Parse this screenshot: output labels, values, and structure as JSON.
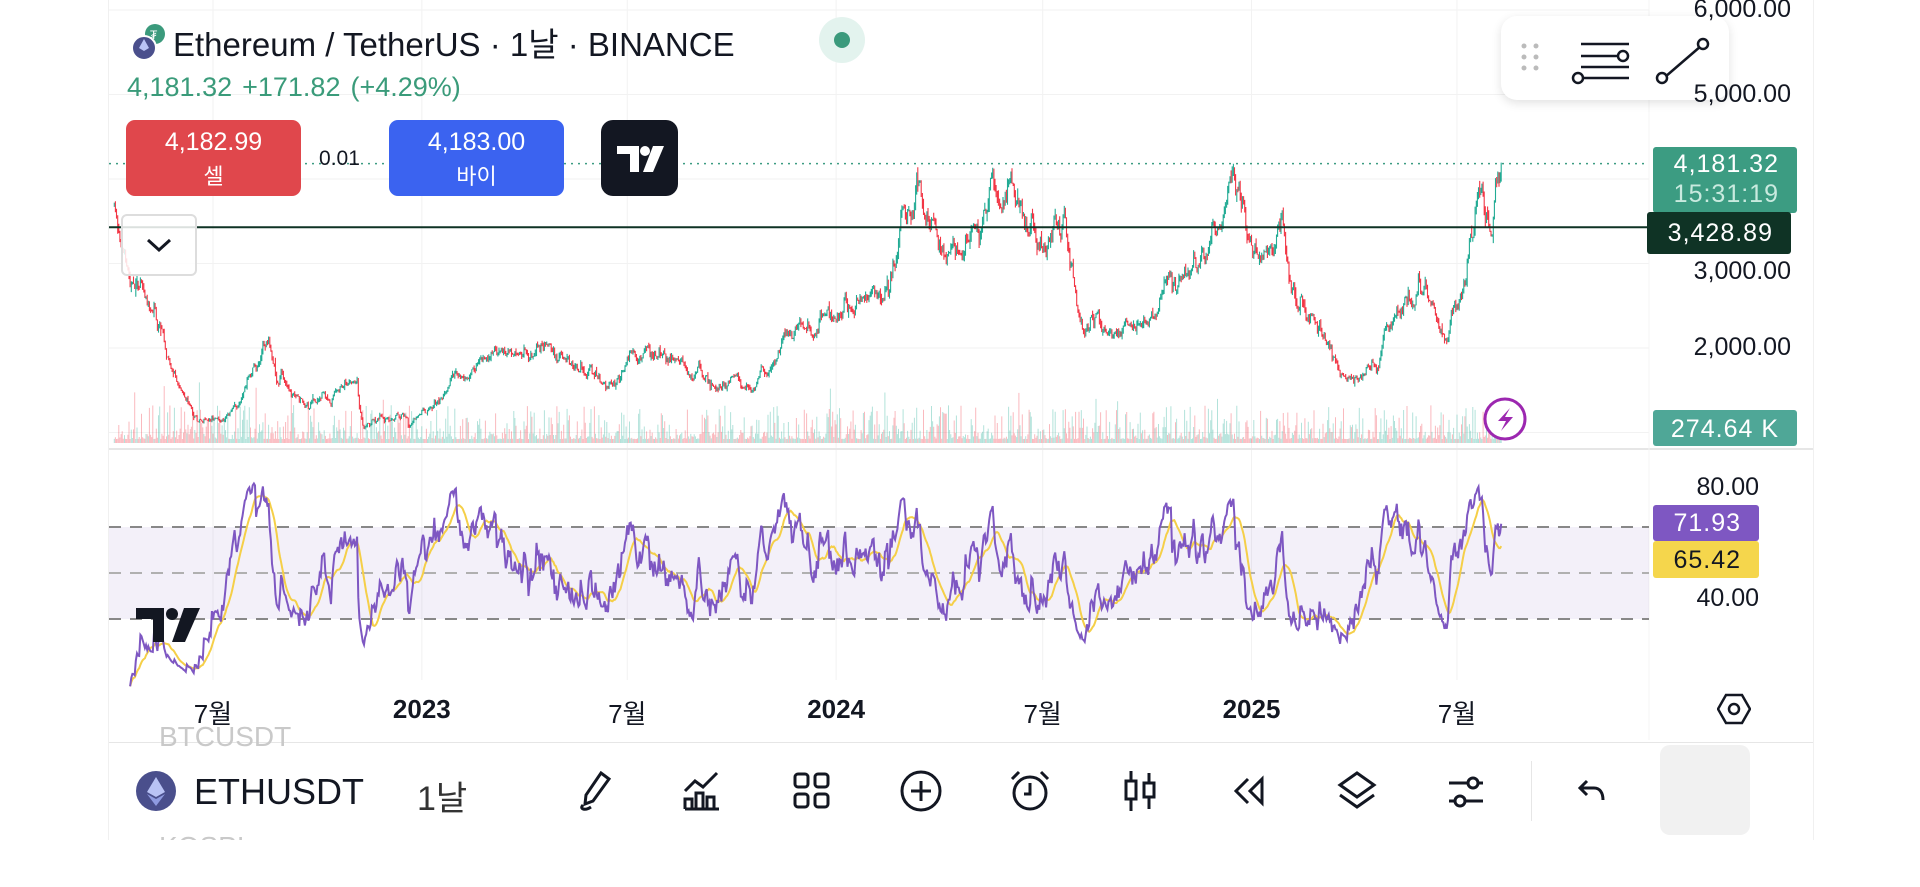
{
  "header": {
    "symbol_title": "Ethereum / TetherUS · 1날 · BINANCE",
    "last_price": "4,181.32",
    "change": "+171.82",
    "change_pct": "(+4.29%)",
    "market_status_color": "#3b9a7c"
  },
  "trade": {
    "sell_price": "4,182.99",
    "sell_label": "셀",
    "spread": "0.01",
    "buy_price": "4,183.00",
    "buy_label": "바이"
  },
  "price_axis": {
    "ticks": [
      "6,000.00",
      "5,000.00",
      "3,000.00",
      "2,000.00"
    ],
    "tick_values": [
      6000,
      5000,
      3000,
      2000
    ],
    "last_price_badge": "4,181.32",
    "countdown": "15:31:19",
    "line_badge": "3,428.89",
    "line_value": 3428.89,
    "volume_badge": "274.64 K"
  },
  "rsi_axis": {
    "ticks": [
      "80.00",
      "40.00"
    ],
    "rsi_value": "71.93",
    "rsi_ma_value": "65.42",
    "levels": [
      70,
      50,
      30
    ]
  },
  "time_axis": {
    "labels": [
      {
        "text": "7월",
        "date": "2022-07-01",
        "bold": false
      },
      {
        "text": "2023",
        "date": "2023-01-01",
        "bold": true
      },
      {
        "text": "7월",
        "date": "2023-07-01",
        "bold": false
      },
      {
        "text": "2024",
        "date": "2024-01-01",
        "bold": true
      },
      {
        "text": "7월",
        "date": "2024-07-01",
        "bold": false
      },
      {
        "text": "2025",
        "date": "2025-01-01",
        "bold": true
      },
      {
        "text": "7월",
        "date": "2025-07-01",
        "bold": false
      }
    ]
  },
  "series": {
    "start_date": "2022-04-05",
    "end_date": "2025-08-09",
    "last_close": 4181.32,
    "prev_close": 4009.5,
    "price_waypoints": [
      [
        "2022-04-05",
        3400
      ],
      [
        "2022-05-10",
        2400
      ],
      [
        "2022-06-18",
        1050
      ],
      [
        "2022-07-10",
        1150
      ],
      [
        "2022-08-14",
        1980
      ],
      [
        "2022-09-20",
        1350
      ],
      [
        "2022-11-05",
        1550
      ],
      [
        "2022-11-10",
        1150
      ],
      [
        "2022-12-31",
        1200
      ],
      [
        "2023-02-01",
        1650
      ],
      [
        "2023-04-15",
        2100
      ],
      [
        "2023-06-15",
        1650
      ],
      [
        "2023-07-15",
        1950
      ],
      [
        "2023-09-10",
        1580
      ],
      [
        "2023-10-20",
        1600
      ],
      [
        "2023-11-15",
        2050
      ],
      [
        "2023-12-28",
        2350
      ],
      [
        "2024-02-01",
        2300
      ],
      [
        "2024-03-12",
        4000
      ],
      [
        "2024-04-15",
        3050
      ],
      [
        "2024-05-20",
        3800
      ],
      [
        "2024-06-10",
        3700
      ],
      [
        "2024-07-05",
        3000
      ],
      [
        "2024-07-20",
        3450
      ],
      [
        "2024-08-05",
        2300
      ],
      [
        "2024-09-10",
        2300
      ],
      [
        "2024-10-10",
        2450
      ],
      [
        "2024-11-08",
        2900
      ],
      [
        "2024-12-16",
        4000
      ],
      [
        "2025-01-10",
        3300
      ],
      [
        "2025-01-30",
        3300
      ],
      [
        "2025-02-05",
        2700
      ],
      [
        "2025-03-01",
        2200
      ],
      [
        "2025-04-08",
        1500
      ],
      [
        "2025-05-12",
        2500
      ],
      [
        "2025-06-10",
        2750
      ],
      [
        "2025-06-22",
        2250
      ],
      [
        "2025-07-20",
        3700
      ],
      [
        "2025-08-02",
        3450
      ],
      [
        "2025-08-09",
        4181.32
      ]
    ]
  },
  "colors": {
    "up": "#22ab94",
    "down": "#f23645",
    "rsi": "#7e57c2",
    "rsi_ma": "#f5cf48",
    "sell": "#e0474c",
    "buy": "#3b63f0"
  },
  "toolbar": {
    "symbol": "ETHUSDT",
    "interval": "1날",
    "prev_symbol": "BTCUSDT",
    "next_symbol": "KOSPI",
    "icons": [
      "draw-icon",
      "indicators-icon",
      "layouts-icon",
      "add-icon",
      "alert-icon",
      "chart-type-icon",
      "replay-icon",
      "layers-icon",
      "settings-icon",
      "undo-icon",
      "collapse-icon"
    ]
  }
}
